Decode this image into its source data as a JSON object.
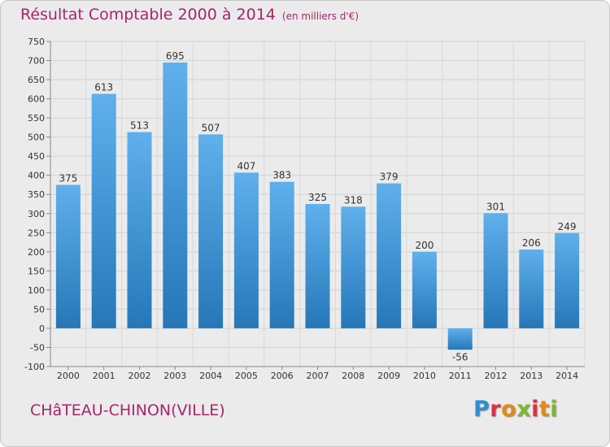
{
  "header": {
    "title": "Résultat Comptable 2000 à 2014",
    "subtitle": "(en milliers d'€)"
  },
  "footer": {
    "commune": "CHâTEAU-CHINON(VILLE)",
    "logo_text": "Proxiti"
  },
  "colors": {
    "bar_top": "#5fb0ec",
    "bar_bottom": "#2677b8",
    "text_accent": "#a8246a",
    "background": "#ebebeb"
  },
  "chart_data": {
    "type": "bar",
    "categories": [
      "2000",
      "2001",
      "2002",
      "2003",
      "2004",
      "2005",
      "2006",
      "2007",
      "2008",
      "2009",
      "2010",
      "2011",
      "2012",
      "2013",
      "2014"
    ],
    "values": [
      375,
      613,
      513,
      695,
      507,
      407,
      383,
      325,
      318,
      379,
      200,
      -56,
      301,
      206,
      249
    ],
    "ylim": [
      -100,
      750
    ],
    "ytick_step": 50,
    "grid": true,
    "xlabel": "",
    "ylabel": ""
  }
}
